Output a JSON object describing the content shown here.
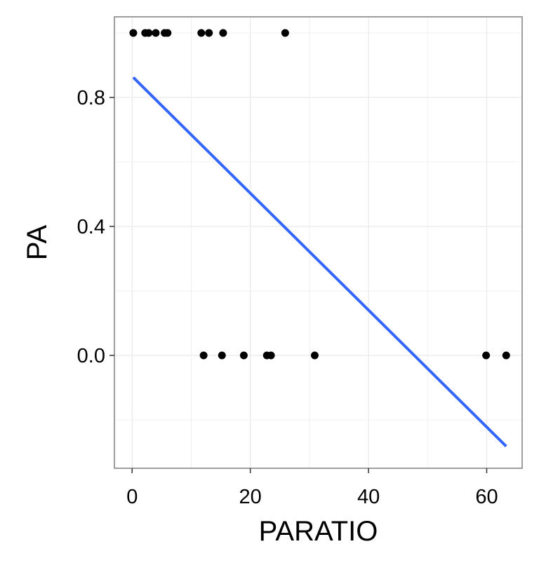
{
  "chart_data": {
    "type": "scatter",
    "xlabel": "PARATIO",
    "ylabel": "PA",
    "xlim": [
      -3,
      66
    ],
    "ylim": [
      -0.35,
      1.05
    ],
    "x_ticks": [
      0,
      20,
      40,
      60
    ],
    "y_ticks": [
      0.0,
      0.4,
      0.8
    ],
    "x_tick_labels": [
      "0",
      "20",
      "40",
      "60"
    ],
    "y_tick_labels": [
      "0.0",
      "0.4",
      "0.8"
    ],
    "grid": true,
    "series": [
      {
        "type": "scatter",
        "x": [
          0.2,
          2.2,
          2.8,
          4.0,
          5.5,
          6.0,
          11.7,
          13.0,
          15.4,
          25.9,
          12.1,
          15.2,
          18.9,
          22.8,
          23.5,
          30.9,
          59.9,
          63.3
        ],
        "y": [
          1,
          1,
          1,
          1,
          1,
          1,
          1,
          1,
          1,
          1,
          0,
          0,
          0,
          0,
          0,
          0,
          0,
          0
        ]
      },
      {
        "type": "line",
        "x": [
          0.2,
          63.3
        ],
        "y": [
          0.862,
          -0.282
        ]
      }
    ]
  },
  "colors": {
    "points": "#000000",
    "fit_line": "#3366ff",
    "grid": "#ebebeb",
    "panel_border": "#7f7f7f"
  }
}
